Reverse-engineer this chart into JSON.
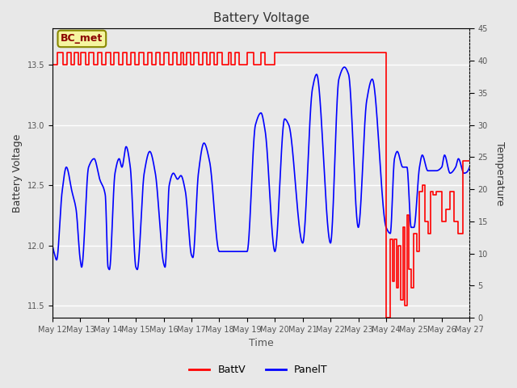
{
  "title": "Battery Voltage",
  "xlabel": "Time",
  "ylabel_left": "Battery Voltage",
  "ylabel_right": "Temperature",
  "ylim_left": [
    11.4,
    13.8
  ],
  "ylim_right": [
    0,
    45
  ],
  "bg_color": "#e8e8e8",
  "grid_color": "white",
  "legend_label_batt": "BattV",
  "legend_label_panel": "PanelT",
  "batt_color": "red",
  "panel_color": "blue",
  "annotation_text": "BC_met",
  "annotation_bg": "#f5f5a0",
  "annotation_border": "#888800",
  "x_tick_labels": [
    "May 12",
    "May 13",
    "May 14",
    "May 15",
    "May 16",
    "May 17",
    "May 18",
    "May 19",
    "May 20",
    "May 21",
    "May 22",
    "May 23",
    "May 24",
    "May 25",
    "May 26",
    "May 27"
  ],
  "tick_fontsize": 7,
  "label_fontsize": 9,
  "title_fontsize": 11
}
